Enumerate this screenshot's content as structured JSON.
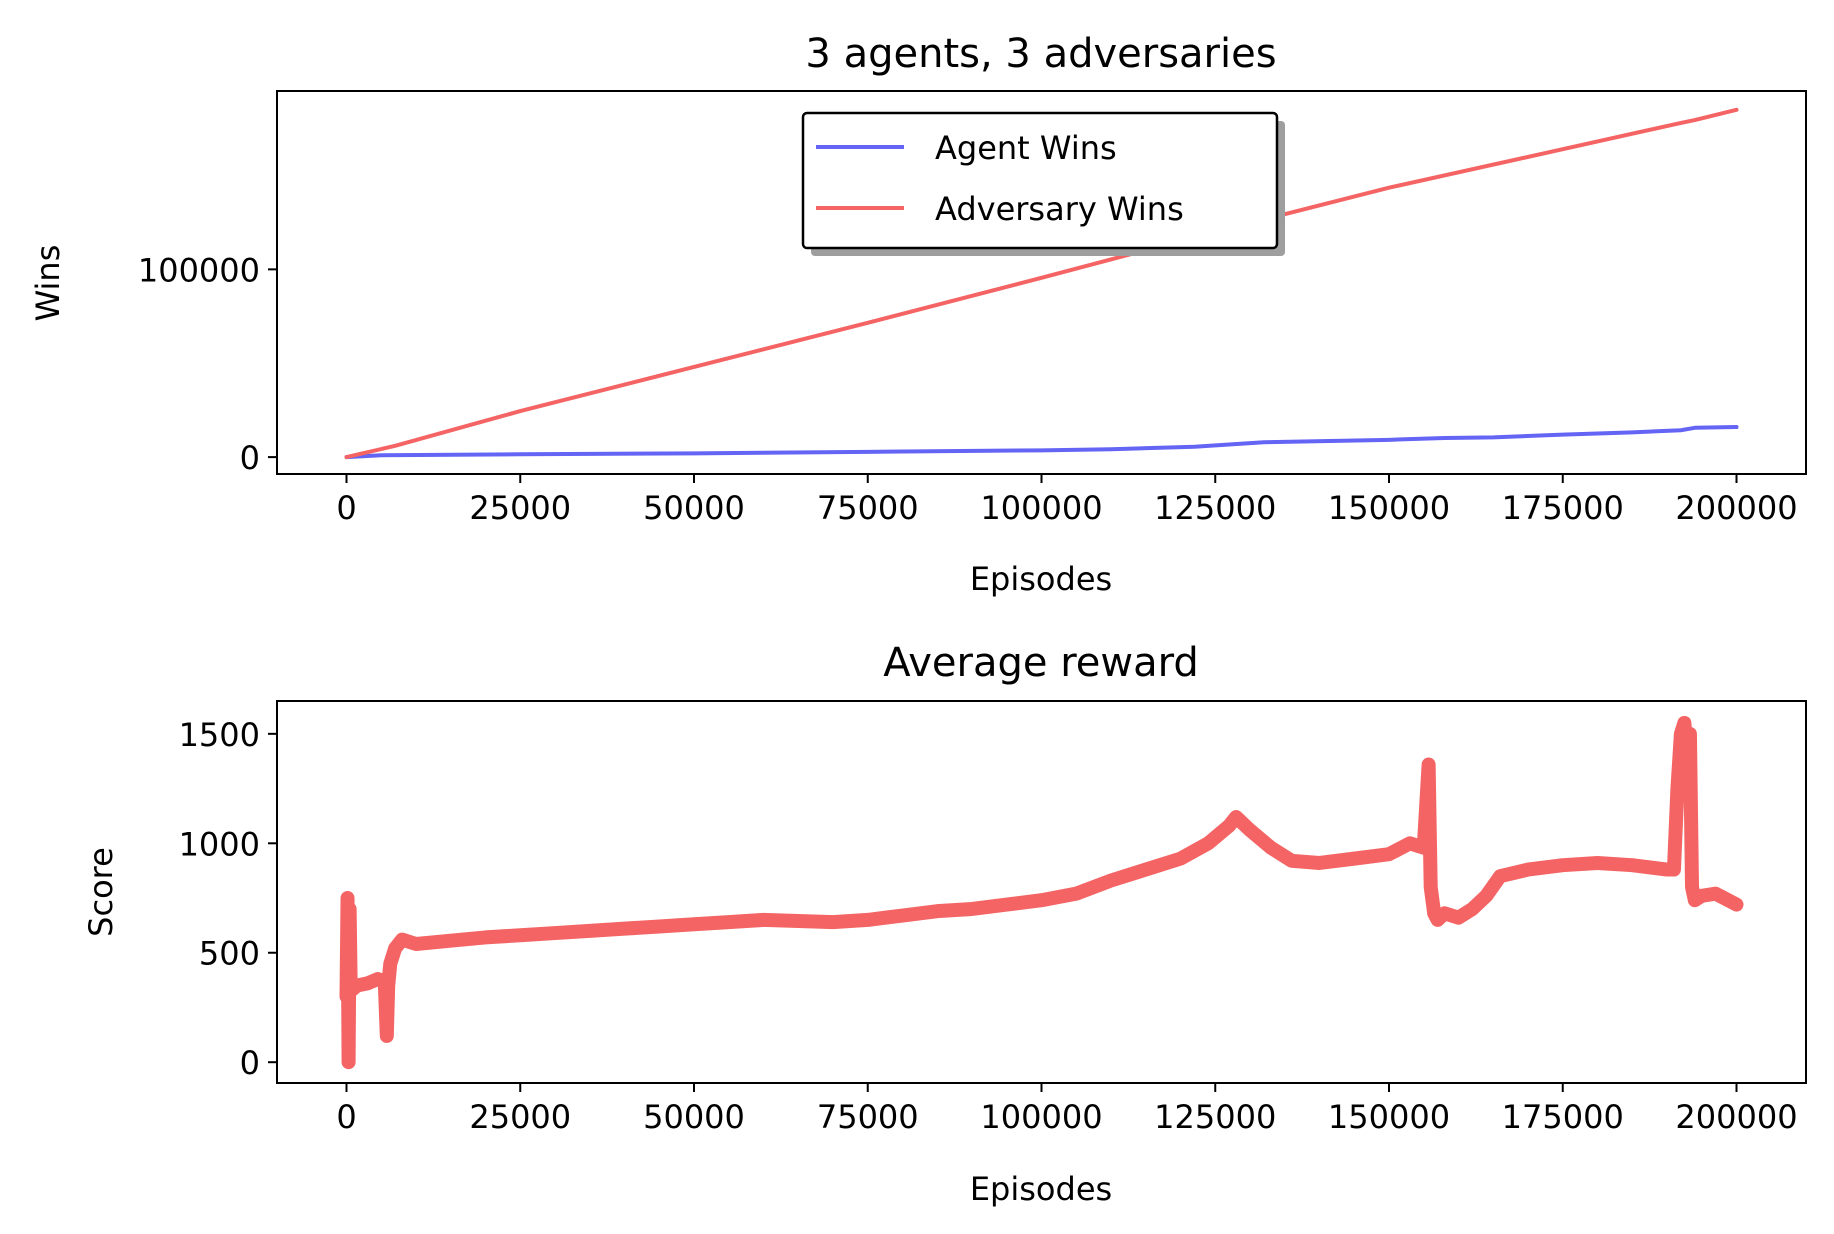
{
  "chart_data": [
    {
      "type": "line",
      "title": "3 agents, 3 adversaries",
      "xlabel": "Episodes",
      "ylabel": "Wins",
      "xlim": [
        -10000,
        210000
      ],
      "ylim": [
        -9000,
        195000
      ],
      "xticks": [
        0,
        25000,
        50000,
        75000,
        100000,
        125000,
        150000,
        175000,
        200000
      ],
      "xtick_labels": [
        "0",
        "25000",
        "50000",
        "75000",
        "100000",
        "125000",
        "150000",
        "175000",
        "200000"
      ],
      "yticks": [
        0,
        100000
      ],
      "ytick_labels": [
        "0",
        "100000"
      ],
      "legend_position": "upper-center",
      "series": [
        {
          "name": "Agent Wins",
          "color": "#6464f5",
          "x": [
            0,
            5000,
            25000,
            50000,
            75000,
            100000,
            110000,
            122000,
            127000,
            132000,
            150000,
            158000,
            165000,
            175000,
            185000,
            192000,
            194000,
            200000
          ],
          "y": [
            0,
            1000,
            1500,
            2000,
            2800,
            3600,
            4200,
            5500,
            6700,
            7900,
            9200,
            10200,
            10500,
            12000,
            13200,
            14300,
            15600,
            16000
          ]
        },
        {
          "name": "Adversary Wins",
          "color": "#f56464",
          "x": [
            0,
            7000,
            25000,
            50000,
            75000,
            100000,
            125000,
            150000,
            175000,
            192000,
            194000,
            200000
          ],
          "y": [
            0,
            6000,
            24500,
            48000,
            71500,
            95500,
            120000,
            143500,
            164000,
            178000,
            179500,
            185000
          ]
        }
      ]
    },
    {
      "type": "line",
      "title": "Average reward",
      "xlabel": "Episodes",
      "ylabel": "Score",
      "xlim": [
        -10000,
        210000
      ],
      "ylim": [
        -95,
        1650
      ],
      "xticks": [
        0,
        25000,
        50000,
        75000,
        100000,
        125000,
        150000,
        175000,
        200000
      ],
      "xtick_labels": [
        "0",
        "25000",
        "50000",
        "75000",
        "100000",
        "125000",
        "150000",
        "175000",
        "200000"
      ],
      "yticks": [
        0,
        500,
        1000,
        1500
      ],
      "ytick_labels": [
        "0",
        "500",
        "1000",
        "1500"
      ],
      "series": [
        {
          "color": "#f56464",
          "x": [
            0,
            150,
            300,
            450,
            600,
            800,
            1500,
            3000,
            4500,
            5500,
            5800,
            6000,
            6300,
            7000,
            8000,
            10000,
            15000,
            20000,
            25000,
            30000,
            35000,
            40000,
            45000,
            50000,
            55000,
            60000,
            65000,
            70000,
            75000,
            80000,
            85000,
            90000,
            95000,
            100000,
            105000,
            110000,
            115000,
            120000,
            124000,
            127000,
            128000,
            130000,
            133000,
            136000,
            140000,
            145000,
            150000,
            153000,
            155000,
            155700,
            156000,
            156500,
            157000,
            158000,
            160000,
            162000,
            164000,
            166000,
            170000,
            175000,
            180000,
            185000,
            190000,
            191000,
            191500,
            192000,
            192500,
            193000,
            193300,
            193600,
            194000,
            195000,
            197000,
            200000
          ],
          "y": [
            300,
            750,
            0,
            700,
            350,
            330,
            350,
            360,
            380,
            370,
            120,
            350,
            450,
            520,
            560,
            540,
            555,
            570,
            580,
            590,
            600,
            610,
            620,
            630,
            640,
            650,
            645,
            640,
            650,
            670,
            690,
            700,
            720,
            740,
            770,
            830,
            880,
            930,
            1000,
            1080,
            1120,
            1060,
            980,
            920,
            910,
            930,
            950,
            1000,
            980,
            1360,
            800,
            680,
            650,
            680,
            660,
            700,
            760,
            850,
            880,
            900,
            910,
            900,
            880,
            880,
            1250,
            1500,
            1550,
            1350,
            1500,
            800,
            740,
            760,
            770,
            720
          ]
        }
      ]
    }
  ]
}
